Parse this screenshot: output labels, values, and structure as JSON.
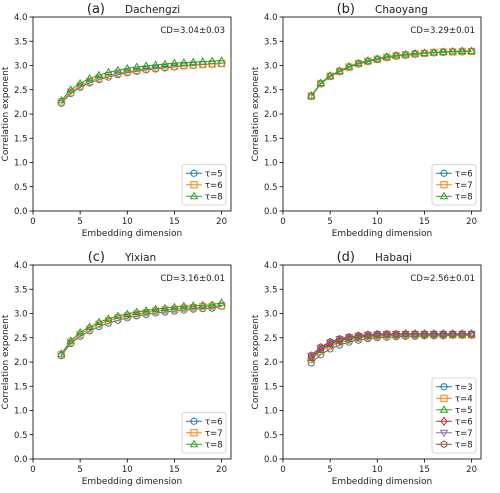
{
  "chart_data": [
    {
      "type": "line",
      "panel_label": "(a)",
      "title": "Dachengzi",
      "annotation": "CD=3.04±0.03",
      "xlabel": "Embedding dimension",
      "ylabel": "Correlation exponent",
      "xlim": [
        0,
        21
      ],
      "ylim": [
        0,
        4
      ],
      "xticks": [
        "0",
        "5",
        "10",
        "15",
        "20"
      ],
      "yticks": [
        "0.0",
        "0.5",
        "1.0",
        "1.5",
        "2.0",
        "2.5",
        "3.0",
        "3.5",
        "4.0"
      ],
      "legend_position": "lower-right",
      "x": [
        3,
        4,
        5,
        6,
        7,
        8,
        9,
        10,
        11,
        12,
        13,
        14,
        15,
        16,
        17,
        18,
        19,
        20
      ],
      "series": [
        {
          "name": "τ=5",
          "marker": "circle",
          "color": "#1f77b4",
          "values": [
            2.22,
            2.42,
            2.55,
            2.64,
            2.71,
            2.76,
            2.81,
            2.85,
            2.88,
            2.91,
            2.93,
            2.95,
            2.97,
            2.99,
            3.0,
            3.02,
            3.03,
            3.04
          ]
        },
        {
          "name": "τ=6",
          "marker": "square",
          "color": "#ff7f0e",
          "values": [
            2.25,
            2.45,
            2.58,
            2.67,
            2.74,
            2.79,
            2.84,
            2.87,
            2.9,
            2.93,
            2.95,
            2.97,
            2.98,
            3.0,
            3.01,
            3.02,
            3.03,
            3.04
          ]
        },
        {
          "name": "τ=8",
          "marker": "triangle",
          "color": "#2ca02c",
          "values": [
            2.28,
            2.5,
            2.63,
            2.73,
            2.8,
            2.86,
            2.9,
            2.94,
            2.97,
            2.99,
            3.01,
            3.03,
            3.05,
            3.06,
            3.07,
            3.08,
            3.09,
            3.1
          ]
        }
      ]
    },
    {
      "type": "line",
      "panel_label": "(b)",
      "title": "Chaoyang",
      "annotation": "CD=3.29±0.01",
      "xlabel": "Embedding dimension",
      "ylabel": "Correlation exponent",
      "xlim": [
        0,
        21
      ],
      "ylim": [
        0,
        4
      ],
      "xticks": [
        "0",
        "5",
        "10",
        "15",
        "20"
      ],
      "yticks": [
        "0.0",
        "0.5",
        "1.0",
        "1.5",
        "2.0",
        "2.5",
        "3.0",
        "3.5",
        "4.0"
      ],
      "legend_position": "lower-right",
      "x": [
        3,
        4,
        5,
        6,
        7,
        8,
        9,
        10,
        11,
        12,
        13,
        14,
        15,
        16,
        17,
        18,
        19,
        20
      ],
      "series": [
        {
          "name": "τ=6",
          "marker": "circle",
          "color": "#1f77b4",
          "values": [
            2.36,
            2.62,
            2.77,
            2.87,
            2.96,
            3.03,
            3.08,
            3.12,
            3.16,
            3.19,
            3.21,
            3.23,
            3.25,
            3.26,
            3.27,
            3.28,
            3.28,
            3.29
          ]
        },
        {
          "name": "τ=7",
          "marker": "square",
          "color": "#ff7f0e",
          "values": [
            2.37,
            2.63,
            2.78,
            2.88,
            2.97,
            3.04,
            3.09,
            3.13,
            3.17,
            3.2,
            3.22,
            3.24,
            3.25,
            3.27,
            3.28,
            3.28,
            3.29,
            3.29
          ]
        },
        {
          "name": "τ=8",
          "marker": "triangle",
          "color": "#2ca02c",
          "values": [
            2.38,
            2.64,
            2.79,
            2.89,
            2.98,
            3.05,
            3.1,
            3.14,
            3.18,
            3.21,
            3.23,
            3.25,
            3.26,
            3.27,
            3.28,
            3.29,
            3.3,
            3.3
          ]
        }
      ]
    },
    {
      "type": "line",
      "panel_label": "(c)",
      "title": "Yixian",
      "annotation": "CD=3.16±0.01",
      "xlabel": "Embedding dimension",
      "ylabel": "Correlation exponent",
      "xlim": [
        0,
        21
      ],
      "ylim": [
        0,
        4
      ],
      "xticks": [
        "0",
        "5",
        "10",
        "15",
        "20"
      ],
      "yticks": [
        "0.0",
        "0.5",
        "1.0",
        "1.5",
        "2.0",
        "2.5",
        "3.0",
        "3.5",
        "4.0"
      ],
      "legend_position": "lower-right",
      "x": [
        3,
        4,
        5,
        6,
        7,
        8,
        9,
        10,
        11,
        12,
        13,
        14,
        15,
        16,
        17,
        18,
        19,
        20
      ],
      "series": [
        {
          "name": "τ=6",
          "marker": "circle",
          "color": "#1f77b4",
          "values": [
            2.13,
            2.38,
            2.53,
            2.64,
            2.73,
            2.8,
            2.86,
            2.91,
            2.95,
            2.98,
            3.01,
            3.03,
            3.05,
            3.07,
            3.09,
            3.1,
            3.11,
            3.15
          ]
        },
        {
          "name": "τ=7",
          "marker": "square",
          "color": "#ff7f0e",
          "values": [
            2.15,
            2.41,
            2.57,
            2.68,
            2.78,
            2.85,
            2.91,
            2.95,
            2.99,
            3.02,
            3.05,
            3.07,
            3.09,
            3.11,
            3.12,
            3.14,
            3.15,
            3.16
          ]
        },
        {
          "name": "τ=8",
          "marker": "triangle",
          "color": "#2ca02c",
          "values": [
            2.17,
            2.44,
            2.61,
            2.72,
            2.82,
            2.89,
            2.95,
            2.99,
            3.03,
            3.06,
            3.09,
            3.11,
            3.13,
            3.15,
            3.16,
            3.17,
            3.18,
            3.22
          ]
        }
      ]
    },
    {
      "type": "line",
      "panel_label": "(d)",
      "title": "Habaqi",
      "annotation": "CD=2.56±0.01",
      "xlabel": "Embedding dimension",
      "ylabel": "Correlation exponent",
      "xlim": [
        0,
        21
      ],
      "ylim": [
        0,
        4
      ],
      "xticks": [
        "0",
        "5",
        "10",
        "15",
        "20"
      ],
      "yticks": [
        "0.0",
        "0.5",
        "1.0",
        "1.5",
        "2.0",
        "2.5",
        "3.0",
        "3.5",
        "4.0"
      ],
      "legend_position": "lower-right",
      "x": [
        3,
        4,
        5,
        6,
        7,
        8,
        9,
        10,
        11,
        12,
        13,
        14,
        15,
        16,
        17,
        18,
        19,
        20
      ],
      "series": [
        {
          "name": "τ=3",
          "marker": "circle",
          "color": "#1f77b4",
          "values": [
            1.98,
            2.15,
            2.27,
            2.35,
            2.41,
            2.45,
            2.48,
            2.5,
            2.51,
            2.52,
            2.53,
            2.53,
            2.54,
            2.54,
            2.54,
            2.55,
            2.55,
            2.55
          ]
        },
        {
          "name": "τ=4",
          "marker": "square",
          "color": "#ff7f0e",
          "values": [
            2.05,
            2.22,
            2.33,
            2.4,
            2.45,
            2.49,
            2.51,
            2.53,
            2.54,
            2.55,
            2.55,
            2.56,
            2.56,
            2.56,
            2.56,
            2.56,
            2.56,
            2.56
          ]
        },
        {
          "name": "τ=5",
          "marker": "triangle",
          "color": "#2ca02c",
          "values": [
            2.08,
            2.25,
            2.36,
            2.43,
            2.48,
            2.51,
            2.53,
            2.55,
            2.56,
            2.56,
            2.57,
            2.57,
            2.57,
            2.57,
            2.57,
            2.57,
            2.57,
            2.57
          ]
        },
        {
          "name": "τ=6",
          "marker": "diamond",
          "color": "#d62728",
          "values": [
            2.1,
            2.27,
            2.38,
            2.45,
            2.5,
            2.53,
            2.55,
            2.56,
            2.57,
            2.57,
            2.58,
            2.58,
            2.58,
            2.58,
            2.58,
            2.58,
            2.58,
            2.58
          ]
        },
        {
          "name": "τ=7",
          "marker": "triangle-down",
          "color": "#9467bd",
          "values": [
            2.12,
            2.29,
            2.4,
            2.47,
            2.51,
            2.54,
            2.56,
            2.57,
            2.58,
            2.58,
            2.58,
            2.58,
            2.58,
            2.58,
            2.58,
            2.58,
            2.58,
            2.58
          ]
        },
        {
          "name": "τ=8",
          "marker": "hexagon",
          "color": "#8c564b",
          "values": [
            2.14,
            2.31,
            2.42,
            2.48,
            2.52,
            2.55,
            2.57,
            2.58,
            2.58,
            2.58,
            2.58,
            2.58,
            2.58,
            2.58,
            2.58,
            2.58,
            2.58,
            2.58
          ]
        }
      ]
    }
  ]
}
